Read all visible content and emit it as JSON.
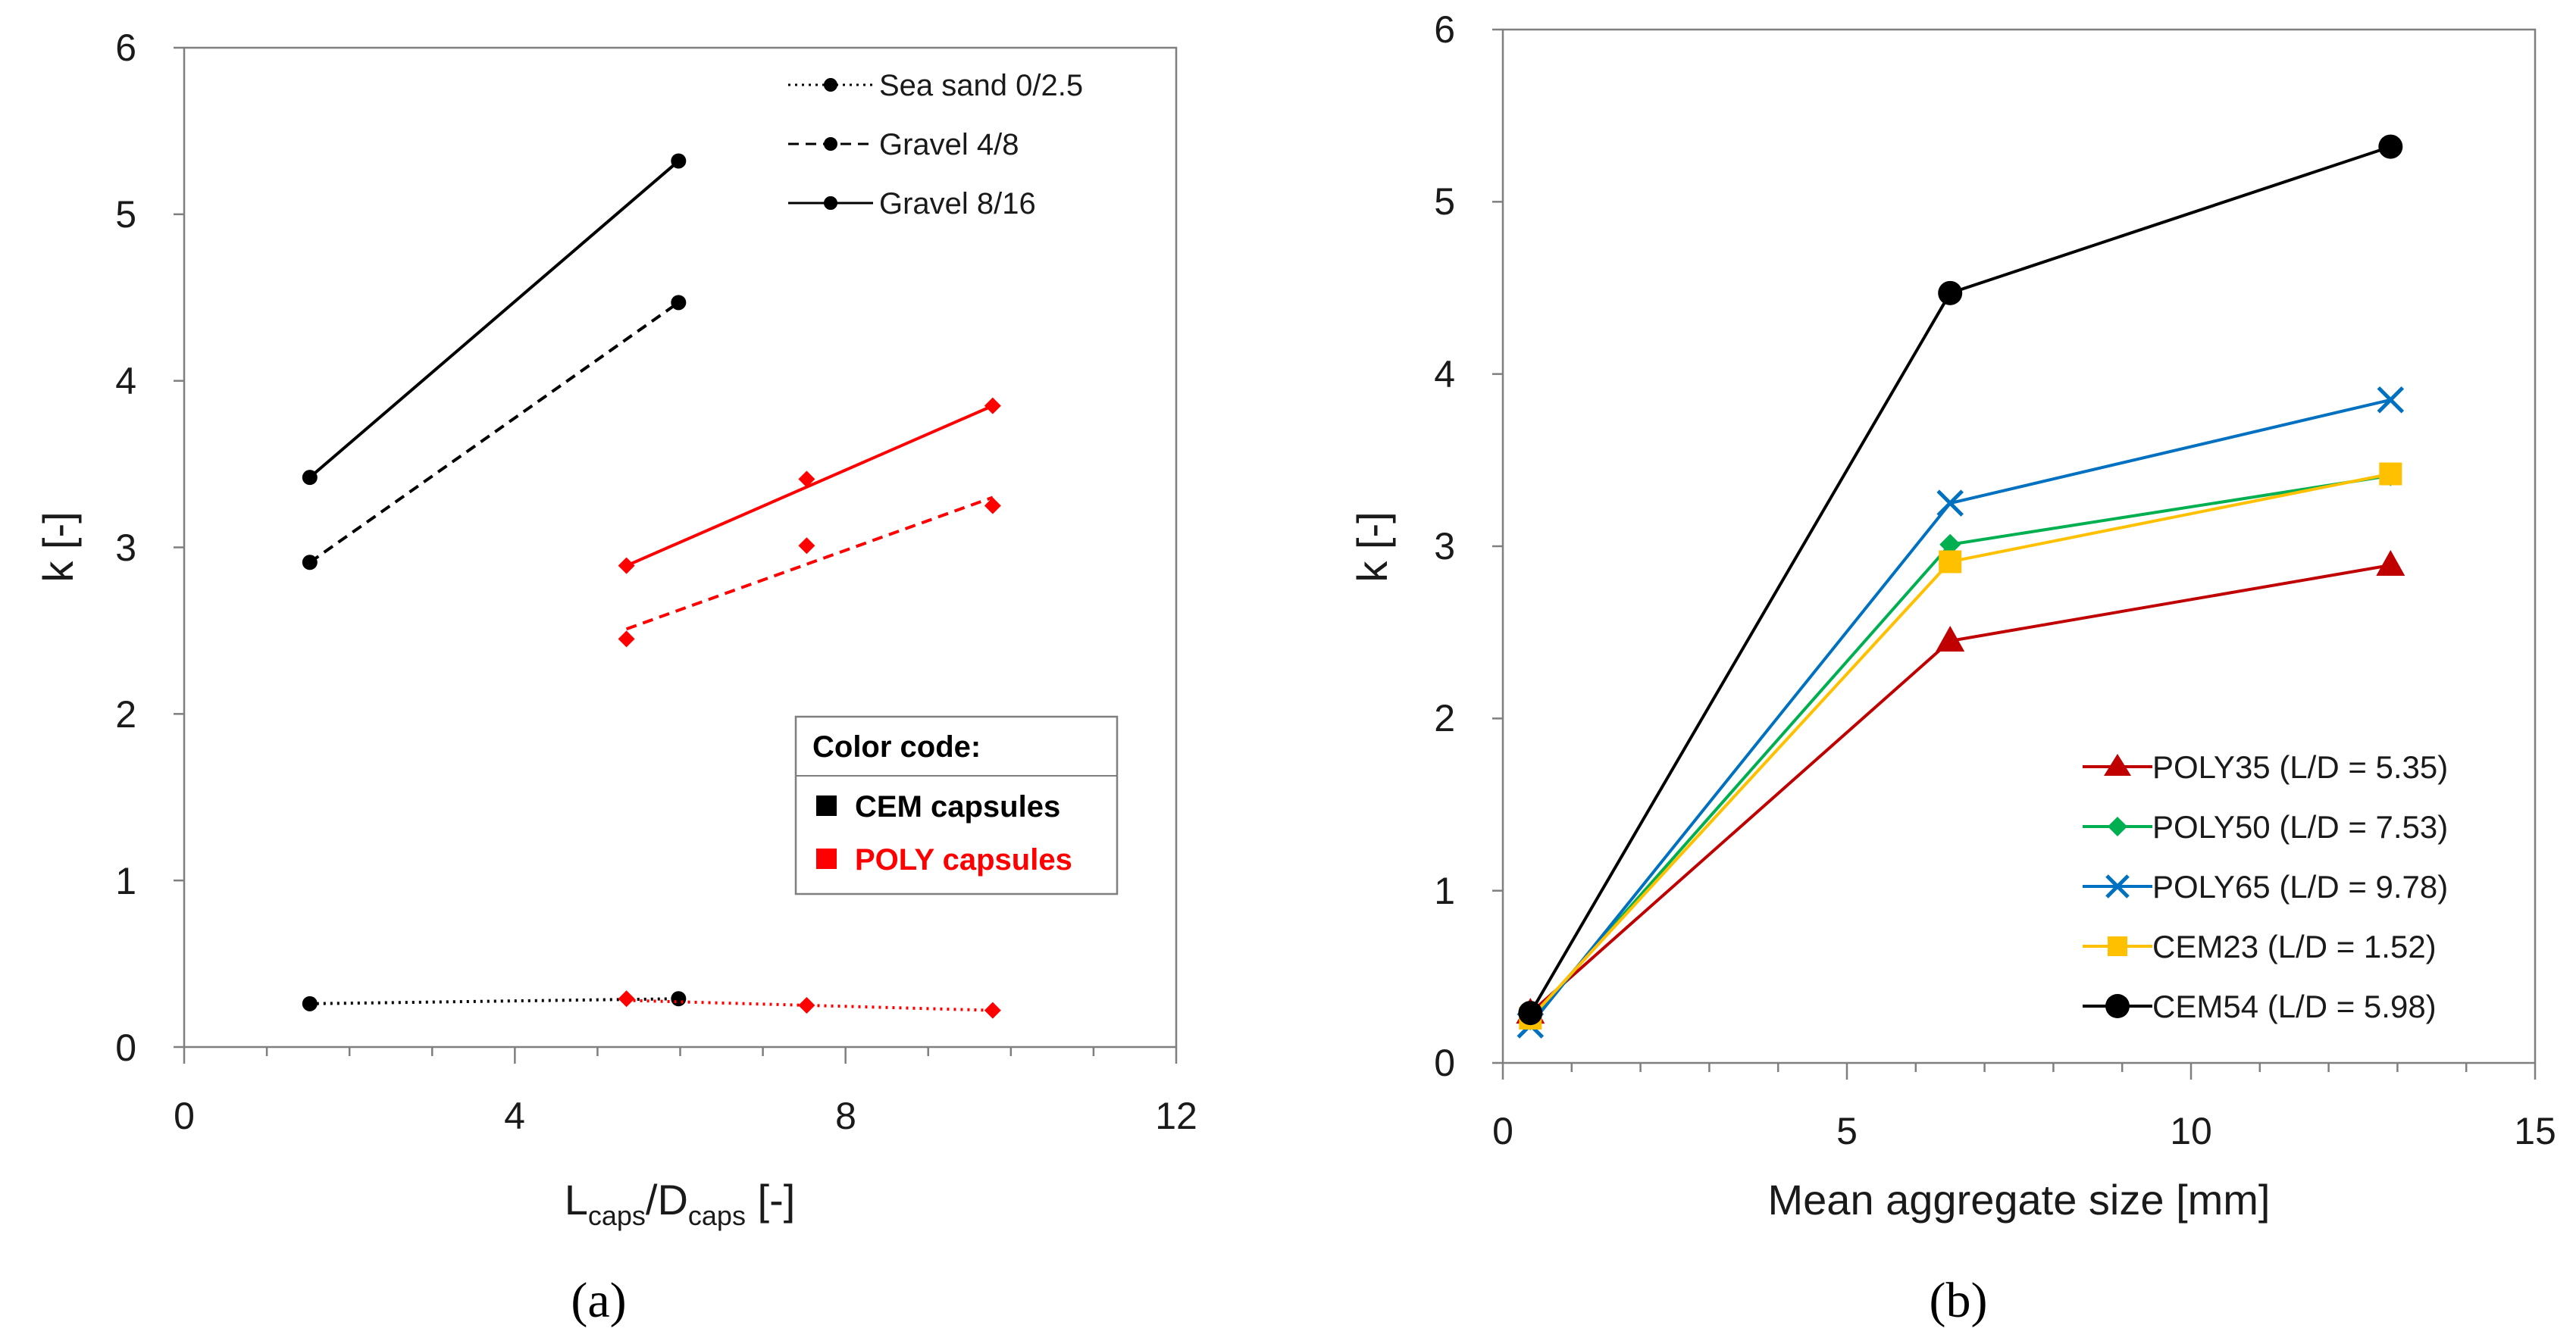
{
  "figure": {
    "panel_a_label": "(a)",
    "panel_b_label": "(b)"
  },
  "chart_data": [
    {
      "type": "line",
      "panel": "a",
      "xlabel_main": "L",
      "xlabel_sub1": "caps",
      "xlabel_mid": "/D",
      "xlabel_sub2": "caps",
      "xlabel_end": " [-]",
      "ylabel": "k [-]",
      "xlim": [
        0,
        12
      ],
      "ylim": [
        0,
        6
      ],
      "xticks": [
        "0",
        "4",
        "8",
        "12"
      ],
      "yticks": [
        "0",
        "1",
        "2",
        "3",
        "4",
        "5",
        "6"
      ],
      "series": [
        {
          "name": "Sea sand 0/2.5 (CEM)",
          "group": "CEM",
          "dash": "dotted",
          "color": "#000000",
          "marker": "circle",
          "points": [
            [
              1.52,
              0.26
            ],
            [
              5.98,
              0.29
            ]
          ],
          "fit": [
            [
              1.52,
              0.26
            ],
            [
              5.98,
              0.29
            ]
          ]
        },
        {
          "name": "Gravel 4/8 (CEM)",
          "group": "CEM",
          "dash": "dashed",
          "color": "#000000",
          "marker": "circle",
          "points": [
            [
              1.52,
              2.91
            ],
            [
              5.98,
              4.47
            ]
          ],
          "fit": [
            [
              1.52,
              2.91
            ],
            [
              5.98,
              4.47
            ]
          ]
        },
        {
          "name": "Gravel 8/16 (CEM)",
          "group": "CEM",
          "dash": "solid",
          "color": "#000000",
          "marker": "circle",
          "points": [
            [
              1.52,
              3.42
            ],
            [
              5.98,
              5.32
            ]
          ],
          "fit": [
            [
              1.52,
              3.42
            ],
            [
              5.98,
              5.32
            ]
          ]
        },
        {
          "name": "Sea sand 0/2.5 (POLY)",
          "group": "POLY",
          "dash": "dotted",
          "color": "#ff0000",
          "marker": "diamond",
          "points": [
            [
              5.35,
              0.29
            ],
            [
              7.53,
              0.25
            ],
            [
              9.78,
              0.22
            ]
          ],
          "fit": [
            [
              5.35,
              0.28
            ],
            [
              9.78,
              0.22
            ]
          ]
        },
        {
          "name": "Gravel 4/8 (POLY)",
          "group": "POLY",
          "dash": "dashed",
          "color": "#ff0000",
          "marker": "diamond",
          "points": [
            [
              5.35,
              2.45
            ],
            [
              7.53,
              3.01
            ],
            [
              9.78,
              3.25
            ]
          ],
          "fit": [
            [
              5.35,
              2.51
            ],
            [
              9.78,
              3.3
            ]
          ]
        },
        {
          "name": "Gravel 8/16 (POLY)",
          "group": "POLY",
          "dash": "solid",
          "color": "#ff0000",
          "marker": "diamond",
          "points": [
            [
              5.35,
              2.89
            ],
            [
              7.53,
              3.41
            ],
            [
              9.78,
              3.85
            ]
          ],
          "fit": [
            [
              5.35,
              2.89
            ],
            [
              9.78,
              3.85
            ]
          ]
        }
      ],
      "legend": {
        "entries": [
          {
            "label": "Sea sand 0/2.5",
            "dash": "dotted"
          },
          {
            "label": "Gravel 4/8",
            "dash": "dashed"
          },
          {
            "label": "Gravel 8/16",
            "dash": "solid"
          }
        ],
        "placement": "top-right"
      },
      "color_code": {
        "title": "Color code:",
        "entries": [
          {
            "label": "CEM capsules",
            "color": "#000000"
          },
          {
            "label": "POLY capsules",
            "color": "#ff0000"
          }
        ],
        "placement": "middle-right"
      }
    },
    {
      "type": "line",
      "panel": "b",
      "xlabel": "Mean aggregate size [mm]",
      "ylabel": "k [-]",
      "xlim": [
        0,
        15
      ],
      "ylim": [
        0,
        6
      ],
      "xticks": [
        "0",
        "5",
        "10",
        "15"
      ],
      "yticks": [
        "0",
        "1",
        "2",
        "3",
        "4",
        "5",
        "6"
      ],
      "x": [
        0.4,
        6.5,
        12.9
      ],
      "series": [
        {
          "name": "POLY35 (L/D = 5.35)",
          "color": "#c00000",
          "marker": "triangle",
          "values": [
            0.29,
            2.45,
            2.89
          ]
        },
        {
          "name": "POLY50 (L/D = 7.53)",
          "color": "#00b050",
          "marker": "diamond",
          "values": [
            0.25,
            3.01,
            3.41
          ]
        },
        {
          "name": "POLY65 (L/D = 9.78)",
          "color": "#0070c0",
          "marker": "x",
          "values": [
            0.22,
            3.25,
            3.85
          ]
        },
        {
          "name": "CEM23 (L/D = 1.52)",
          "color": "#ffc000",
          "marker": "square",
          "values": [
            0.26,
            2.91,
            3.42
          ]
        },
        {
          "name": "CEM54 (L/D = 5.98)",
          "color": "#000000",
          "marker": "circle",
          "values": [
            0.29,
            4.47,
            5.32
          ]
        }
      ],
      "legend": {
        "placement": "bottom-right"
      }
    }
  ]
}
